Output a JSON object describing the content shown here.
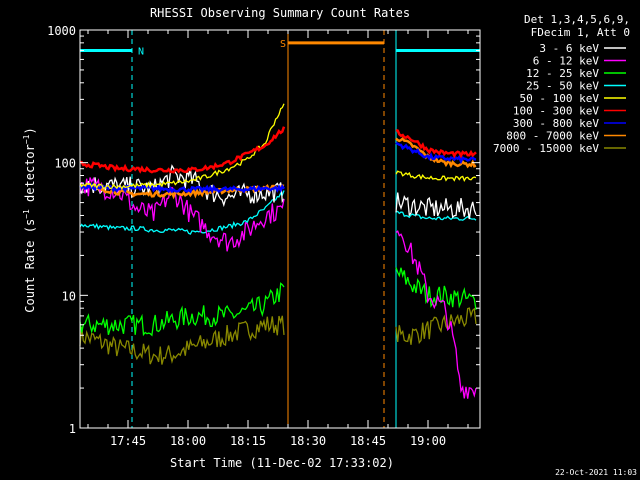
{
  "chart_data": {
    "type": "line",
    "title": "RHESSI Observing Summary Count Rates",
    "xlabel": "Start Time (11-Dec-02 17:33:02)",
    "ylabel": "Count Rate (s⁻¹ detector⁻¹)",
    "ylabel_parts": {
      "a": "Count Rate (s",
      "sup1": "−1",
      "b": " detector",
      "sup2": "−1",
      "c": ")"
    },
    "yscale": "log",
    "ylim": [
      1,
      1000
    ],
    "xlim_minutes": [
      33,
      133
    ],
    "x_ticks": [
      {
        "label": "17:45",
        "t": 45
      },
      {
        "label": "18:00",
        "t": 60
      },
      {
        "label": "18:15",
        "t": 75
      },
      {
        "label": "18:30",
        "t": 90
      },
      {
        "label": "18:45",
        "t": 105
      },
      {
        "label": "19:00",
        "t": 120
      }
    ],
    "y_ticks": [
      {
        "label": "1",
        "v": 1
      },
      {
        "label": "10",
        "v": 10
      },
      {
        "label": "100",
        "v": 100
      },
      {
        "label": "1000",
        "v": 1000
      }
    ],
    "legend_header": [
      "Det 1,3,4,5,6,9,",
      "FDecim 1, Att 0"
    ],
    "legend_placement": "right",
    "series": [
      {
        "name": "3 - 6 keV",
        "color": "#ffffff",
        "segment1": {
          "start": 33,
          "end": 84,
          "values": [
            70,
            68,
            66,
            65,
            63,
            80,
            75,
            60,
            55,
            58,
            60,
            60
          ]
        },
        "segment2": {
          "start": 112,
          "end": 132,
          "values": [
            50,
            48,
            45,
            45,
            45,
            45
          ]
        }
      },
      {
        "name": "6 - 12 keV",
        "color": "#ff00ff",
        "segment1": {
          "start": 33,
          "end": 84,
          "values": [
            68,
            65,
            62,
            45,
            40,
            60,
            40,
            30,
            25,
            30,
            40,
            45
          ]
        },
        "segment2": {
          "start": 112,
          "end": 132,
          "values": [
            35,
            20,
            10,
            8,
            2,
            2
          ]
        }
      },
      {
        "name": "12 - 25 keV",
        "color": "#00ff00",
        "segment1": {
          "start": 33,
          "end": 84,
          "values": [
            6,
            6,
            6,
            6,
            6,
            6.5,
            7,
            7,
            7,
            7.5,
            8.5,
            11
          ]
        },
        "segment2": {
          "start": 112,
          "end": 132,
          "values": [
            15,
            12,
            10,
            10,
            9.5,
            9
          ]
        }
      },
      {
        "name": "25 - 50 keV",
        "color": "#00ffff",
        "segment1": {
          "start": 33,
          "end": 84,
          "values": [
            34,
            33,
            32,
            32,
            31,
            31,
            30,
            31,
            33,
            36,
            45,
            60
          ]
        },
        "segment2": {
          "start": 112,
          "end": 132,
          "values": [
            42,
            40,
            38,
            38,
            38,
            38
          ]
        }
      },
      {
        "name": "50 - 100 keV",
        "color": "#ffff00",
        "segment1": {
          "start": 33,
          "end": 84,
          "values": [
            68,
            67,
            66,
            67,
            68,
            70,
            73,
            80,
            90,
            105,
            140,
            270
          ]
        },
        "segment2": {
          "start": 112,
          "end": 132,
          "values": [
            85,
            80,
            77,
            76,
            76,
            75
          ]
        }
      },
      {
        "name": "100 - 300 keV",
        "color": "#ff0000",
        "segment1": {
          "start": 33,
          "end": 84,
          "values": [
            98,
            95,
            90,
            90,
            88,
            88,
            88,
            92,
            100,
            115,
            135,
            180
          ]
        },
        "segment2": {
          "start": 112,
          "end": 132,
          "values": [
            170,
            150,
            125,
            118,
            116,
            115
          ]
        }
      },
      {
        "name": "300 - 800 keV",
        "color": "#0000ff",
        "segment1": {
          "start": 33,
          "end": 84,
          "values": [
            66,
            65,
            64,
            64,
            64,
            63,
            63,
            63,
            63,
            63,
            64,
            64
          ]
        },
        "segment2": {
          "start": 112,
          "end": 132,
          "values": [
            140,
            125,
            110,
            108,
            106,
            105
          ]
        }
      },
      {
        "name": "800 - 7000 keV",
        "color": "#ff8800",
        "segment1": {
          "start": 33,
          "end": 84,
          "values": [
            68,
            64,
            60,
            58,
            58,
            58,
            59,
            60,
            62,
            63,
            64,
            66
          ]
        },
        "segment2": {
          "start": 112,
          "end": 132,
          "values": [
            155,
            135,
            110,
            100,
            98,
            97
          ]
        }
      },
      {
        "name": "7000 - 15000 keV",
        "color": "#888800",
        "segment1": {
          "start": 33,
          "end": 84,
          "values": [
            5,
            4.5,
            4,
            3.8,
            3.5,
            3.6,
            4,
            4.5,
            5,
            5.5,
            6,
            6
          ]
        },
        "segment2": {
          "start": 112,
          "end": 132,
          "values": [
            5,
            5,
            5.5,
            6,
            6.5,
            6.8
          ]
        }
      }
    ],
    "annotations": [
      {
        "label": "N",
        "color": "#00ffff",
        "from": 33,
        "to": 46,
        "level": 700,
        "end_marker": 46
      },
      {
        "label": "S",
        "color": "#ff8800",
        "from": 85,
        "to": 109,
        "level": 800,
        "start_marker": 85,
        "end_marker": 109
      },
      {
        "label": "",
        "color": "#00ffff",
        "from": 112,
        "to": 133,
        "level": 700,
        "start_marker": 112,
        "end_marker": 133
      }
    ],
    "vertical_lines": [
      {
        "t": 33,
        "color": "#00ffff",
        "style": "solid"
      },
      {
        "t": 46,
        "color": "#00ffff",
        "style": "dashed"
      },
      {
        "t": 85,
        "color": "#ff8800",
        "style": "solid"
      },
      {
        "t": 109,
        "color": "#ff8800",
        "style": "dashed"
      },
      {
        "t": 112,
        "color": "#00ffff",
        "style": "solid"
      },
      {
        "t": 133,
        "color": "#00ffff",
        "style": "dashed"
      }
    ],
    "timestamp": "22-Oct-2021 11:03"
  }
}
